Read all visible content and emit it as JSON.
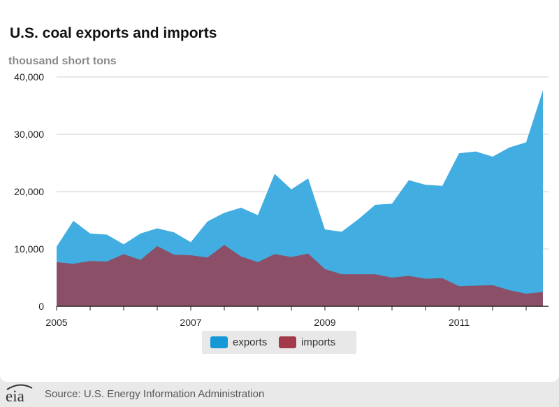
{
  "header": {
    "title": "U.S. coal exports and imports",
    "units": "thousand short tons"
  },
  "footer": {
    "logo_text": "eia",
    "source": "Source: U.S. Energy Information Administration"
  },
  "colors": {
    "exports": "#42ade0",
    "imports": "#8b5068",
    "exports_swatch": "#1598d6",
    "imports_swatch": "#a23a4b",
    "grid": "#cfcfcf",
    "axis": "#222222"
  },
  "chart_data": {
    "type": "area",
    "title": "U.S. coal exports and imports",
    "ylabel": "thousand short tons",
    "xlabel": "",
    "stacked": false,
    "ylim": [
      0,
      40000
    ],
    "yticks": [
      0,
      10000,
      20000,
      30000,
      40000
    ],
    "ytick_labels": [
      "0",
      "10,000",
      "20,000",
      "30,000",
      "40,000"
    ],
    "xlim": [
      "2005 Q1",
      "2012 Q2"
    ],
    "xtick_labels": [
      "2005",
      "2007",
      "2009",
      "2011"
    ],
    "x": [
      "2005 Q1",
      "2005 Q2",
      "2005 Q3",
      "2005 Q4",
      "2006 Q1",
      "2006 Q2",
      "2006 Q3",
      "2006 Q4",
      "2007 Q1",
      "2007 Q2",
      "2007 Q3",
      "2007 Q4",
      "2008 Q1",
      "2008 Q2",
      "2008 Q3",
      "2008 Q4",
      "2009 Q1",
      "2009 Q2",
      "2009 Q3",
      "2009 Q4",
      "2010 Q1",
      "2010 Q2",
      "2010 Q3",
      "2010 Q4",
      "2011 Q1",
      "2011 Q2",
      "2011 Q3",
      "2011 Q4",
      "2012 Q1",
      "2012 Q2"
    ],
    "legend": "bottom",
    "grid": true,
    "series": [
      {
        "name": "exports",
        "values": [
          10400,
          14900,
          12700,
          12500,
          10800,
          12700,
          13600,
          12900,
          11200,
          14800,
          16300,
          17200,
          15900,
          23100,
          20400,
          22300,
          13400,
          13000,
          15200,
          17700,
          17900,
          22000,
          21200,
          21000,
          26700,
          27000,
          26100,
          27700,
          28600,
          37700
        ]
      },
      {
        "name": "imports",
        "values": [
          7700,
          7400,
          7900,
          7800,
          9100,
          8100,
          10500,
          9000,
          8900,
          8500,
          10700,
          8700,
          7700,
          9100,
          8600,
          9200,
          6500,
          5600,
          5600,
          5600,
          5000,
          5300,
          4800,
          4900,
          3500,
          3600,
          3700,
          2800,
          2200,
          2500
        ]
      }
    ]
  }
}
